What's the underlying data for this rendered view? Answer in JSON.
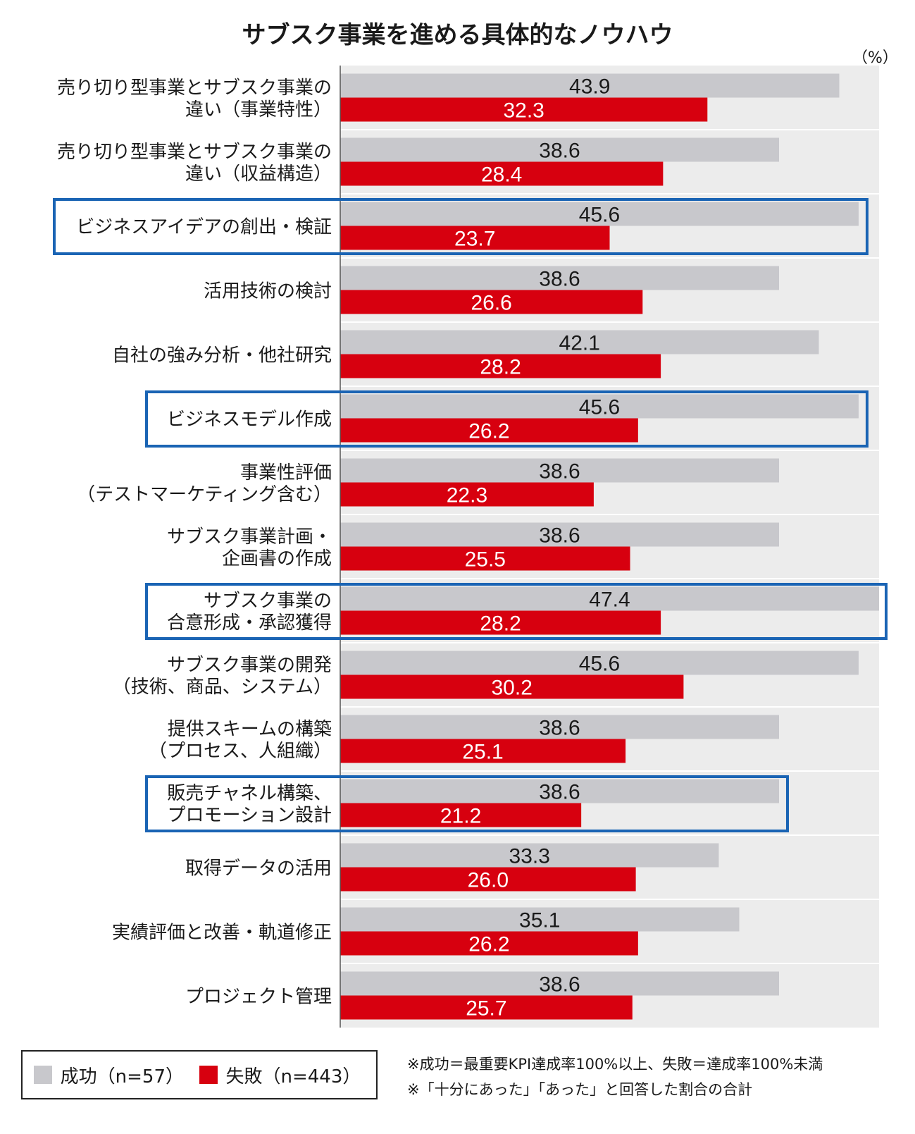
{
  "title": "サブスク事業を進める具体的なノウハウ",
  "unit": "（%）",
  "legend": {
    "success_label": "成功（n=57）",
    "failure_label": "失敗（n=443）"
  },
  "notes": [
    "※成功＝最重要KPI達成率100%以上、失敗＝達成率100%未満",
    "※「十分にあった」「あった」と回答した割合の合計"
  ],
  "colors": {
    "success": "#c8c8cc",
    "failure": "#d7000f",
    "highlight": "#1a64b4",
    "panel": "#ececec"
  },
  "chart_data": {
    "type": "bar",
    "orientation": "horizontal",
    "title": "サブスク事業を進める具体的なノウハウ",
    "categories": [
      [
        "売り切り型事業とサブスク事業の",
        "違い（事業特性）"
      ],
      [
        "売り切り型事業とサブスク事業の",
        "違い（収益構造）"
      ],
      [
        "ビジネスアイデアの創出・検証"
      ],
      [
        "活用技術の検討"
      ],
      [
        "自社の強み分析・他社研究"
      ],
      [
        "ビジネスモデル作成"
      ],
      [
        "事業性評価",
        "（テストマーケティング含む）"
      ],
      [
        "サブスク事業計画・",
        "企画書の作成"
      ],
      [
        "サブスク事業の",
        "合意形成・承認獲得"
      ],
      [
        "サブスク事業の開発",
        "（技術、商品、システム）"
      ],
      [
        "提供スキームの構築",
        "（プロセス、人組織）"
      ],
      [
        "販売チャネル構築、",
        "プロモーション設計"
      ],
      [
        "取得データの活用"
      ],
      [
        "実績評価と改善・軌道修正"
      ],
      [
        "プロジェクト管理"
      ]
    ],
    "series": [
      {
        "name": "成功（n=57）",
        "values": [
          43.9,
          38.6,
          45.6,
          38.6,
          42.1,
          45.6,
          38.6,
          38.6,
          47.4,
          45.6,
          38.6,
          38.6,
          33.3,
          35.1,
          38.6
        ]
      },
      {
        "name": "失敗（n=443）",
        "values": [
          32.3,
          28.4,
          23.7,
          26.6,
          28.2,
          26.2,
          22.3,
          25.5,
          28.2,
          30.2,
          25.1,
          21.2,
          26.0,
          26.2,
          25.7
        ]
      }
    ],
    "highlighted_categories": [
      2,
      5,
      8,
      11
    ],
    "xlim": [
      0,
      47.4
    ],
    "grid": false
  }
}
